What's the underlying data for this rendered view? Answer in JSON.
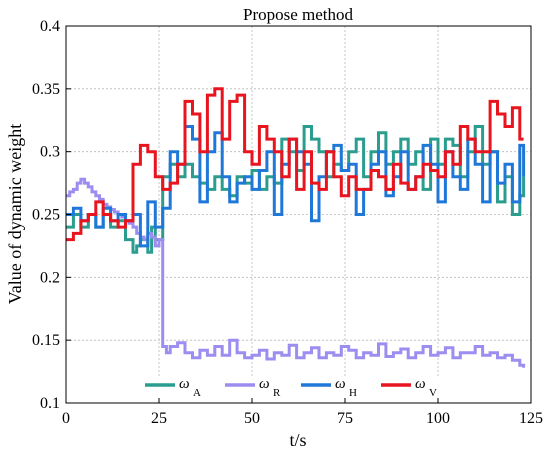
{
  "chart_data": {
    "type": "line",
    "title": "Propose method",
    "xlabel": "t/s",
    "ylabel": "Value of dynamic weight",
    "xlim": [
      0,
      125
    ],
    "ylim": [
      0.1,
      0.4
    ],
    "xticks": [
      0,
      25,
      50,
      75,
      100,
      125
    ],
    "yticks": [
      0.1,
      0.15,
      0.2,
      0.25,
      0.3,
      0.35,
      0.4
    ],
    "xtick_labels": [
      "0",
      "25",
      "50",
      "75",
      "100",
      "125"
    ],
    "ytick_labels": [
      "0.1",
      "0.15",
      "0.2",
      "0.25",
      "0.3",
      "0.35",
      "0.4"
    ],
    "grid": true,
    "step": true,
    "legend_position": "bottom",
    "series": [
      {
        "name": "ω_A",
        "symbol": "ω",
        "subscript": "A",
        "color": "#2a9d8f",
        "x": [
          0,
          2,
          4,
          6,
          8,
          10,
          12,
          14,
          16,
          18,
          19,
          20,
          22,
          23,
          24,
          26,
          28,
          30,
          32,
          34,
          36,
          38,
          40,
          42,
          44,
          46,
          48,
          50,
          52,
          54,
          56,
          58,
          60,
          62,
          64,
          66,
          68,
          70,
          72,
          74,
          76,
          78,
          80,
          82,
          84,
          86,
          88,
          90,
          92,
          94,
          96,
          98,
          100,
          102,
          104,
          106,
          108,
          110,
          112,
          114,
          116,
          118,
          120,
          122,
          123
        ],
        "y": [
          0.24,
          0.25,
          0.24,
          0.25,
          0.24,
          0.25,
          0.24,
          0.245,
          0.23,
          0.22,
          0.225,
          0.23,
          0.22,
          0.24,
          0.23,
          0.28,
          0.29,
          0.28,
          0.29,
          0.28,
          0.275,
          0.27,
          0.28,
          0.27,
          0.265,
          0.28,
          0.275,
          0.285,
          0.27,
          0.28,
          0.275,
          0.31,
          0.3,
          0.285,
          0.32,
          0.31,
          0.3,
          0.28,
          0.29,
          0.285,
          0.3,
          0.31,
          0.28,
          0.3,
          0.315,
          0.29,
          0.3,
          0.31,
          0.29,
          0.3,
          0.27,
          0.31,
          0.29,
          0.31,
          0.305,
          0.28,
          0.3,
          0.32,
          0.29,
          0.3,
          0.26,
          0.28,
          0.25,
          0.265,
          0.28
        ]
      },
      {
        "name": "ω_R",
        "symbol": "ω",
        "subscript": "R",
        "color": "#9b8ef0",
        "x": [
          0,
          1,
          2,
          3,
          4,
          5,
          6,
          7,
          8,
          9,
          10,
          11,
          12,
          13,
          14,
          15,
          16,
          17,
          18,
          19,
          20,
          21,
          22,
          23,
          24,
          25,
          26,
          27,
          28,
          30,
          32,
          34,
          36,
          38,
          40,
          42,
          44,
          46,
          48,
          50,
          52,
          54,
          56,
          58,
          60,
          62,
          64,
          66,
          68,
          70,
          72,
          74,
          76,
          78,
          80,
          82,
          84,
          86,
          88,
          90,
          92,
          94,
          96,
          98,
          100,
          102,
          104,
          106,
          108,
          110,
          112,
          114,
          116,
          118,
          120,
          122,
          123
        ],
        "y": [
          0.265,
          0.268,
          0.27,
          0.275,
          0.278,
          0.275,
          0.272,
          0.268,
          0.265,
          0.262,
          0.258,
          0.256,
          0.254,
          0.252,
          0.25,
          0.248,
          0.245,
          0.243,
          0.24,
          0.235,
          0.232,
          0.23,
          0.235,
          0.232,
          0.225,
          0.23,
          0.145,
          0.14,
          0.145,
          0.148,
          0.14,
          0.136,
          0.142,
          0.138,
          0.145,
          0.138,
          0.15,
          0.14,
          0.136,
          0.138,
          0.142,
          0.135,
          0.14,
          0.138,
          0.146,
          0.136,
          0.14,
          0.144,
          0.136,
          0.14,
          0.138,
          0.145,
          0.142,
          0.136,
          0.14,
          0.138,
          0.147,
          0.137,
          0.14,
          0.143,
          0.136,
          0.14,
          0.145,
          0.138,
          0.14,
          0.144,
          0.136,
          0.14,
          0.14,
          0.145,
          0.138,
          0.14,
          0.136,
          0.138,
          0.134,
          0.13,
          0.128
        ]
      },
      {
        "name": "ω_H",
        "symbol": "ω",
        "subscript": "H",
        "color": "#1f78d8",
        "x": [
          0,
          2,
          4,
          6,
          8,
          10,
          12,
          14,
          16,
          18,
          20,
          22,
          24,
          26,
          28,
          30,
          32,
          34,
          36,
          38,
          40,
          42,
          44,
          46,
          48,
          50,
          52,
          54,
          56,
          58,
          60,
          62,
          64,
          66,
          68,
          70,
          72,
          74,
          76,
          78,
          80,
          82,
          84,
          86,
          88,
          90,
          92,
          94,
          96,
          98,
          100,
          102,
          104,
          106,
          108,
          110,
          112,
          114,
          116,
          118,
          120,
          122,
          123
        ],
        "y": [
          0.25,
          0.255,
          0.245,
          0.25,
          0.24,
          0.255,
          0.245,
          0.25,
          0.245,
          0.25,
          0.225,
          0.26,
          0.24,
          0.255,
          0.3,
          0.29,
          0.32,
          0.31,
          0.26,
          0.3,
          0.315,
          0.28,
          0.26,
          0.275,
          0.28,
          0.27,
          0.285,
          0.3,
          0.25,
          0.29,
          0.31,
          0.3,
          0.29,
          0.245,
          0.28,
          0.3,
          0.305,
          0.285,
          0.29,
          0.25,
          0.27,
          0.29,
          0.3,
          0.265,
          0.28,
          0.3,
          0.27,
          0.28,
          0.305,
          0.29,
          0.26,
          0.3,
          0.28,
          0.27,
          0.31,
          0.29,
          0.26,
          0.3,
          0.275,
          0.29,
          0.26,
          0.305,
          0.28
        ]
      },
      {
        "name": "ω_V",
        "symbol": "ω",
        "subscript": "V",
        "color": "#e8141e",
        "x": [
          0,
          2,
          4,
          6,
          8,
          10,
          12,
          14,
          16,
          18,
          20,
          22,
          24,
          26,
          28,
          30,
          32,
          34,
          36,
          38,
          40,
          42,
          44,
          46,
          48,
          50,
          52,
          54,
          56,
          58,
          60,
          62,
          64,
          66,
          68,
          70,
          72,
          74,
          76,
          78,
          80,
          82,
          84,
          86,
          88,
          90,
          92,
          94,
          96,
          98,
          100,
          102,
          104,
          106,
          108,
          110,
          112,
          114,
          116,
          118,
          120,
          122,
          123
        ],
        "y": [
          0.23,
          0.235,
          0.245,
          0.25,
          0.26,
          0.25,
          0.245,
          0.24,
          0.245,
          0.29,
          0.305,
          0.3,
          0.28,
          0.27,
          0.275,
          0.29,
          0.34,
          0.33,
          0.3,
          0.345,
          0.35,
          0.31,
          0.34,
          0.345,
          0.3,
          0.29,
          0.32,
          0.31,
          0.3,
          0.28,
          0.31,
          0.27,
          0.3,
          0.275,
          0.27,
          0.3,
          0.28,
          0.265,
          0.28,
          0.27,
          0.27,
          0.285,
          0.28,
          0.27,
          0.29,
          0.275,
          0.27,
          0.28,
          0.29,
          0.285,
          0.28,
          0.3,
          0.29,
          0.32,
          0.31,
          0.3,
          0.3,
          0.34,
          0.33,
          0.32,
          0.335,
          0.31,
          0.31
        ]
      }
    ]
  }
}
